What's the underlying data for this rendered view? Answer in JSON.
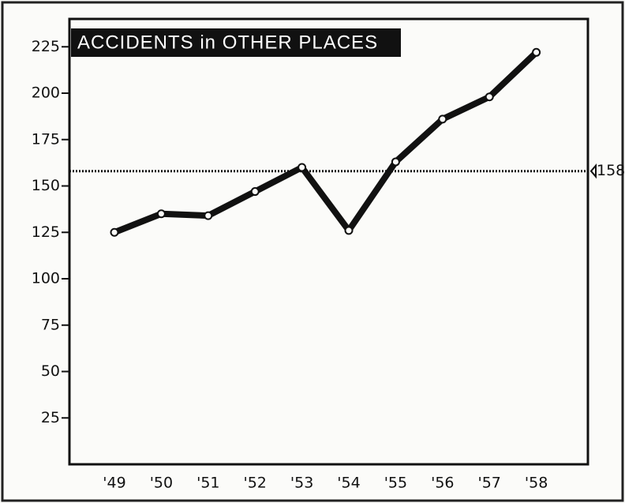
{
  "chart_data": {
    "type": "line",
    "title": "ACCIDENTS in OTHER PLACES",
    "categories": [
      "'49",
      "'50",
      "'51",
      "'52",
      "'53",
      "'54",
      "'55",
      "'56",
      "'57",
      "'58"
    ],
    "values": [
      125,
      135,
      134,
      147,
      160,
      126,
      163,
      186,
      198,
      222
    ],
    "color": "#111111",
    "ylim": [
      0,
      240
    ],
    "yticks": [
      25,
      50,
      75,
      100,
      125,
      150,
      175,
      200,
      225
    ],
    "reference_line": 158
  }
}
